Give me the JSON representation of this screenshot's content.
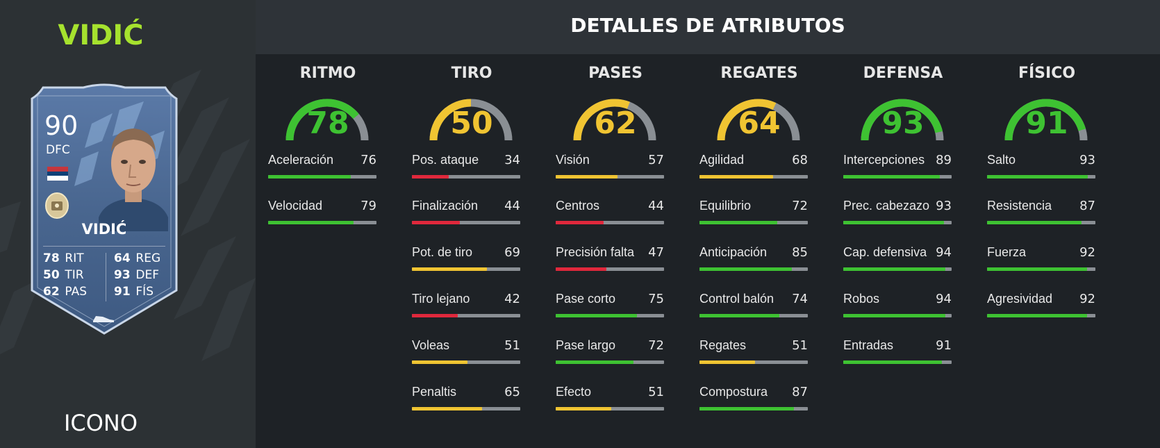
{
  "player": {
    "title": "VIDIĆ",
    "rarity": "ICONO",
    "card": {
      "rating": "90",
      "position": "DFC",
      "name": "VIDIĆ",
      "nation_flag_colors": [
        "#c6363c",
        "#0c4076",
        "#ffffff"
      ],
      "left_stats": [
        {
          "value": "78",
          "label": "RIT"
        },
        {
          "value": "50",
          "label": "TIR"
        },
        {
          "value": "62",
          "label": "PAS"
        }
      ],
      "right_stats": [
        {
          "value": "64",
          "label": "REG"
        },
        {
          "value": "93",
          "label": "DEF"
        },
        {
          "value": "91",
          "label": "FÍS"
        }
      ]
    }
  },
  "details_title": "DETALLES DE ATRIBUTOS",
  "colors": {
    "green": "#3ec232",
    "yellow": "#f0c432",
    "red": "#e0283c",
    "track": "#8a8f94"
  },
  "categories": [
    {
      "name": "RITMO",
      "value": 78,
      "stats": [
        {
          "name": "Aceleración",
          "value": 76
        },
        {
          "name": "Velocidad",
          "value": 79
        }
      ]
    },
    {
      "name": "TIRO",
      "value": 50,
      "stats": [
        {
          "name": "Pos. ataque",
          "value": 34
        },
        {
          "name": "Finalización",
          "value": 44
        },
        {
          "name": "Pot. de tiro",
          "value": 69
        },
        {
          "name": "Tiro lejano",
          "value": 42
        },
        {
          "name": "Voleas",
          "value": 51
        },
        {
          "name": "Penaltis",
          "value": 65
        }
      ]
    },
    {
      "name": "PASES",
      "value": 62,
      "stats": [
        {
          "name": "Visión",
          "value": 57
        },
        {
          "name": "Centros",
          "value": 44
        },
        {
          "name": "Precisión falta",
          "value": 47
        },
        {
          "name": "Pase corto",
          "value": 75
        },
        {
          "name": "Pase largo",
          "value": 72
        },
        {
          "name": "Efecto",
          "value": 51
        }
      ]
    },
    {
      "name": "REGATES",
      "value": 64,
      "stats": [
        {
          "name": "Agilidad",
          "value": 68
        },
        {
          "name": "Equilibrio",
          "value": 72
        },
        {
          "name": "Anticipación",
          "value": 85
        },
        {
          "name": "Control balón",
          "value": 74
        },
        {
          "name": "Regates",
          "value": 51
        },
        {
          "name": "Compostura",
          "value": 87
        }
      ]
    },
    {
      "name": "DEFENSA",
      "value": 93,
      "stats": [
        {
          "name": "Intercepciones",
          "value": 89
        },
        {
          "name": "Prec. cabezazo",
          "value": 93
        },
        {
          "name": "Cap. defensiva",
          "value": 94
        },
        {
          "name": "Robos",
          "value": 94
        },
        {
          "name": "Entradas",
          "value": 91
        }
      ]
    },
    {
      "name": "FÍSICO",
      "value": 91,
      "stats": [
        {
          "name": "Salto",
          "value": 93
        },
        {
          "name": "Resistencia",
          "value": 87
        },
        {
          "name": "Fuerza",
          "value": 92
        },
        {
          "name": "Agresividad",
          "value": 92
        }
      ]
    }
  ]
}
